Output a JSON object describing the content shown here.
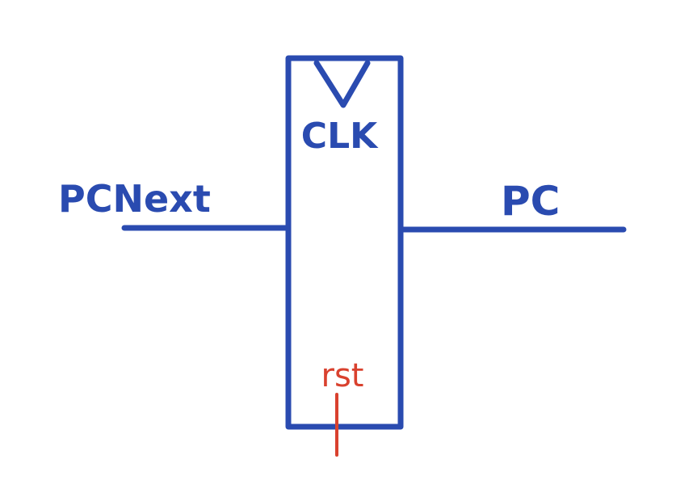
{
  "diagram": {
    "labels": {
      "clock": "CLK",
      "input": "PCNext",
      "output": "PC",
      "reset": "rst"
    },
    "colors": {
      "ink": "#2a4bb0",
      "reset": "#d9412e",
      "background": "#ffffff"
    }
  }
}
